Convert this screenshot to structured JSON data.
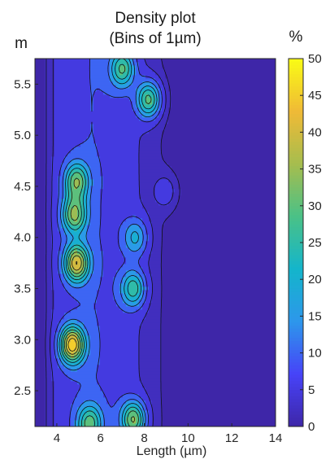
{
  "chart_data": {
    "type": "heatmap",
    "title": [
      "Density plot",
      "(Bins of 1µm)"
    ],
    "xlabel": "Length (µm)",
    "ylabel": "m",
    "colorbar_label": "%",
    "xlim": [
      3,
      14
    ],
    "ylim": [
      2.15,
      5.75
    ],
    "clim": [
      0,
      50
    ],
    "xticks": [
      "4",
      "6",
      "8",
      "10",
      "12",
      "14"
    ],
    "yticks": [
      "2.5",
      "3.0",
      "3.5",
      "4.0",
      "4.5",
      "5.0",
      "5.5"
    ],
    "cticks": [
      "0",
      "5",
      "10",
      "15",
      "20",
      "25",
      "30",
      "35",
      "40",
      "45",
      "50"
    ],
    "contour_levels": [
      2,
      5,
      10,
      15,
      20,
      25,
      30,
      35,
      40,
      45
    ],
    "colormap": [
      "#3e26a8",
      "#4743f8",
      "#2d97eb",
      "#14b5cb",
      "#4ac187",
      "#a6bd4e",
      "#f0ba36",
      "#f9fb15"
    ],
    "hotspots": [
      {
        "x": 4.7,
        "y": 2.95,
        "value": 41
      },
      {
        "x": 4.9,
        "y": 3.75,
        "value": 36
      },
      {
        "x": 4.8,
        "y": 4.22,
        "value": 28
      },
      {
        "x": 4.9,
        "y": 4.55,
        "value": 26
      },
      {
        "x": 8.2,
        "y": 5.35,
        "value": 28
      },
      {
        "x": 7.0,
        "y": 5.65,
        "value": 24
      },
      {
        "x": 7.5,
        "y": 3.5,
        "value": 23
      },
      {
        "x": 7.5,
        "y": 2.22,
        "value": 30
      },
      {
        "x": 5.5,
        "y": 2.18,
        "value": 24
      },
      {
        "x": 9.0,
        "y": 4.45,
        "value": 6
      },
      {
        "x": 7.6,
        "y": 4.0,
        "value": 16
      }
    ],
    "base_ridge": {
      "x": 5.6,
      "y": 3.4,
      "value": 10
    }
  }
}
